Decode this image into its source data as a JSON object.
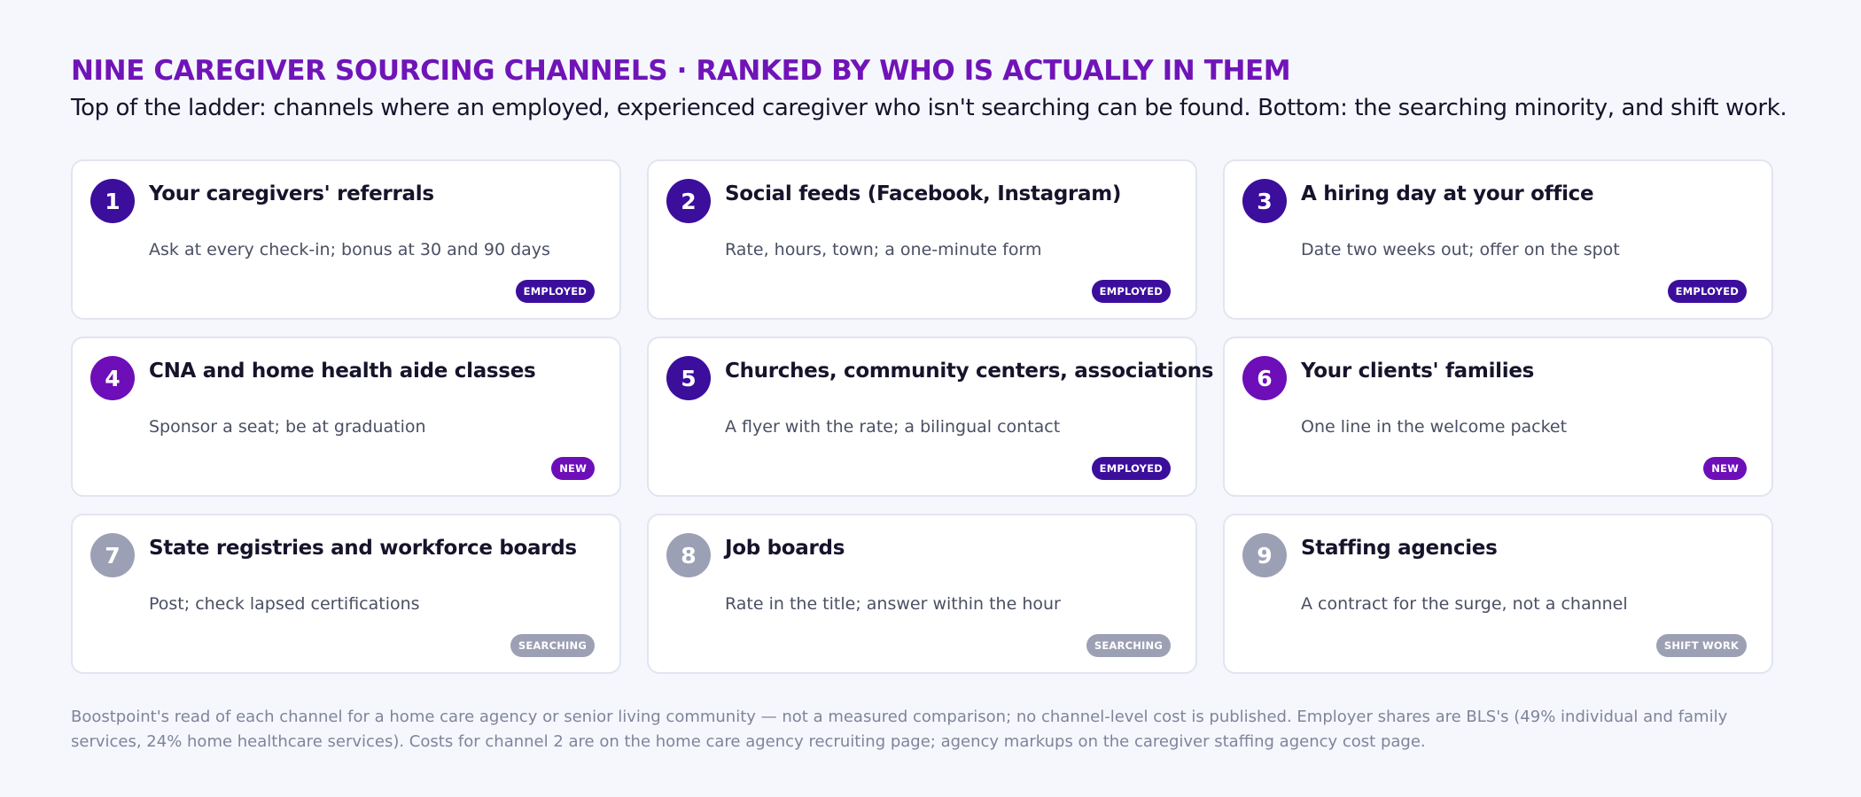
{
  "header": {
    "title": "NINE CAREGIVER SOURCING CHANNELS · RANKED BY WHO IS ACTUALLY IN THEM",
    "subtitle": "Top of the ladder: channels where an employed, experienced caregiver who isn't searching can be found. Bottom: the searching minority, and shift work."
  },
  "colors": {
    "title": "#7014b8",
    "employed": "#3b0e9c",
    "new": "#6d0eb8",
    "searching": "#9ca0b4"
  },
  "cards": [
    {
      "number": "1",
      "title": "Your caregivers' referrals",
      "description": "Ask at every check-in; bonus at 30 and 90 days",
      "badge": "EMPLOYED",
      "tone": "employed"
    },
    {
      "number": "2",
      "title": "Social feeds (Facebook, Instagram)",
      "description": "Rate, hours, town; a one-minute form",
      "badge": "EMPLOYED",
      "tone": "employed"
    },
    {
      "number": "3",
      "title": "A hiring day at your office",
      "description": "Date two weeks out; offer on the spot",
      "badge": "EMPLOYED",
      "tone": "employed"
    },
    {
      "number": "4",
      "title": "CNA and home health aide classes",
      "description": "Sponsor a seat; be at graduation",
      "badge": "NEW",
      "tone": "new"
    },
    {
      "number": "5",
      "title": "Churches, community centers, associations",
      "description": "A flyer with the rate; a bilingual contact",
      "badge": "EMPLOYED",
      "tone": "employed"
    },
    {
      "number": "6",
      "title": "Your clients' families",
      "description": "One line in the welcome packet",
      "badge": "NEW",
      "tone": "new"
    },
    {
      "number": "7",
      "title": "State registries and workforce boards",
      "description": "Post; check lapsed certifications",
      "badge": "SEARCHING",
      "tone": "searching"
    },
    {
      "number": "8",
      "title": "Job boards",
      "description": "Rate in the title; answer within the hour",
      "badge": "SEARCHING",
      "tone": "searching"
    },
    {
      "number": "9",
      "title": "Staffing agencies",
      "description": "A contract for the surge, not a channel",
      "badge": "SHIFT WORK",
      "tone": "searching"
    }
  ],
  "footnote": "Boostpoint's read of each channel for a home care agency or senior living community — not a measured comparison; no channel-level cost is published. Employer shares are BLS's (49% individual and family services, 24% home healthcare services). Costs for channel 2 are on the home care agency recruiting page; agency markups on the caregiver staffing agency cost page."
}
